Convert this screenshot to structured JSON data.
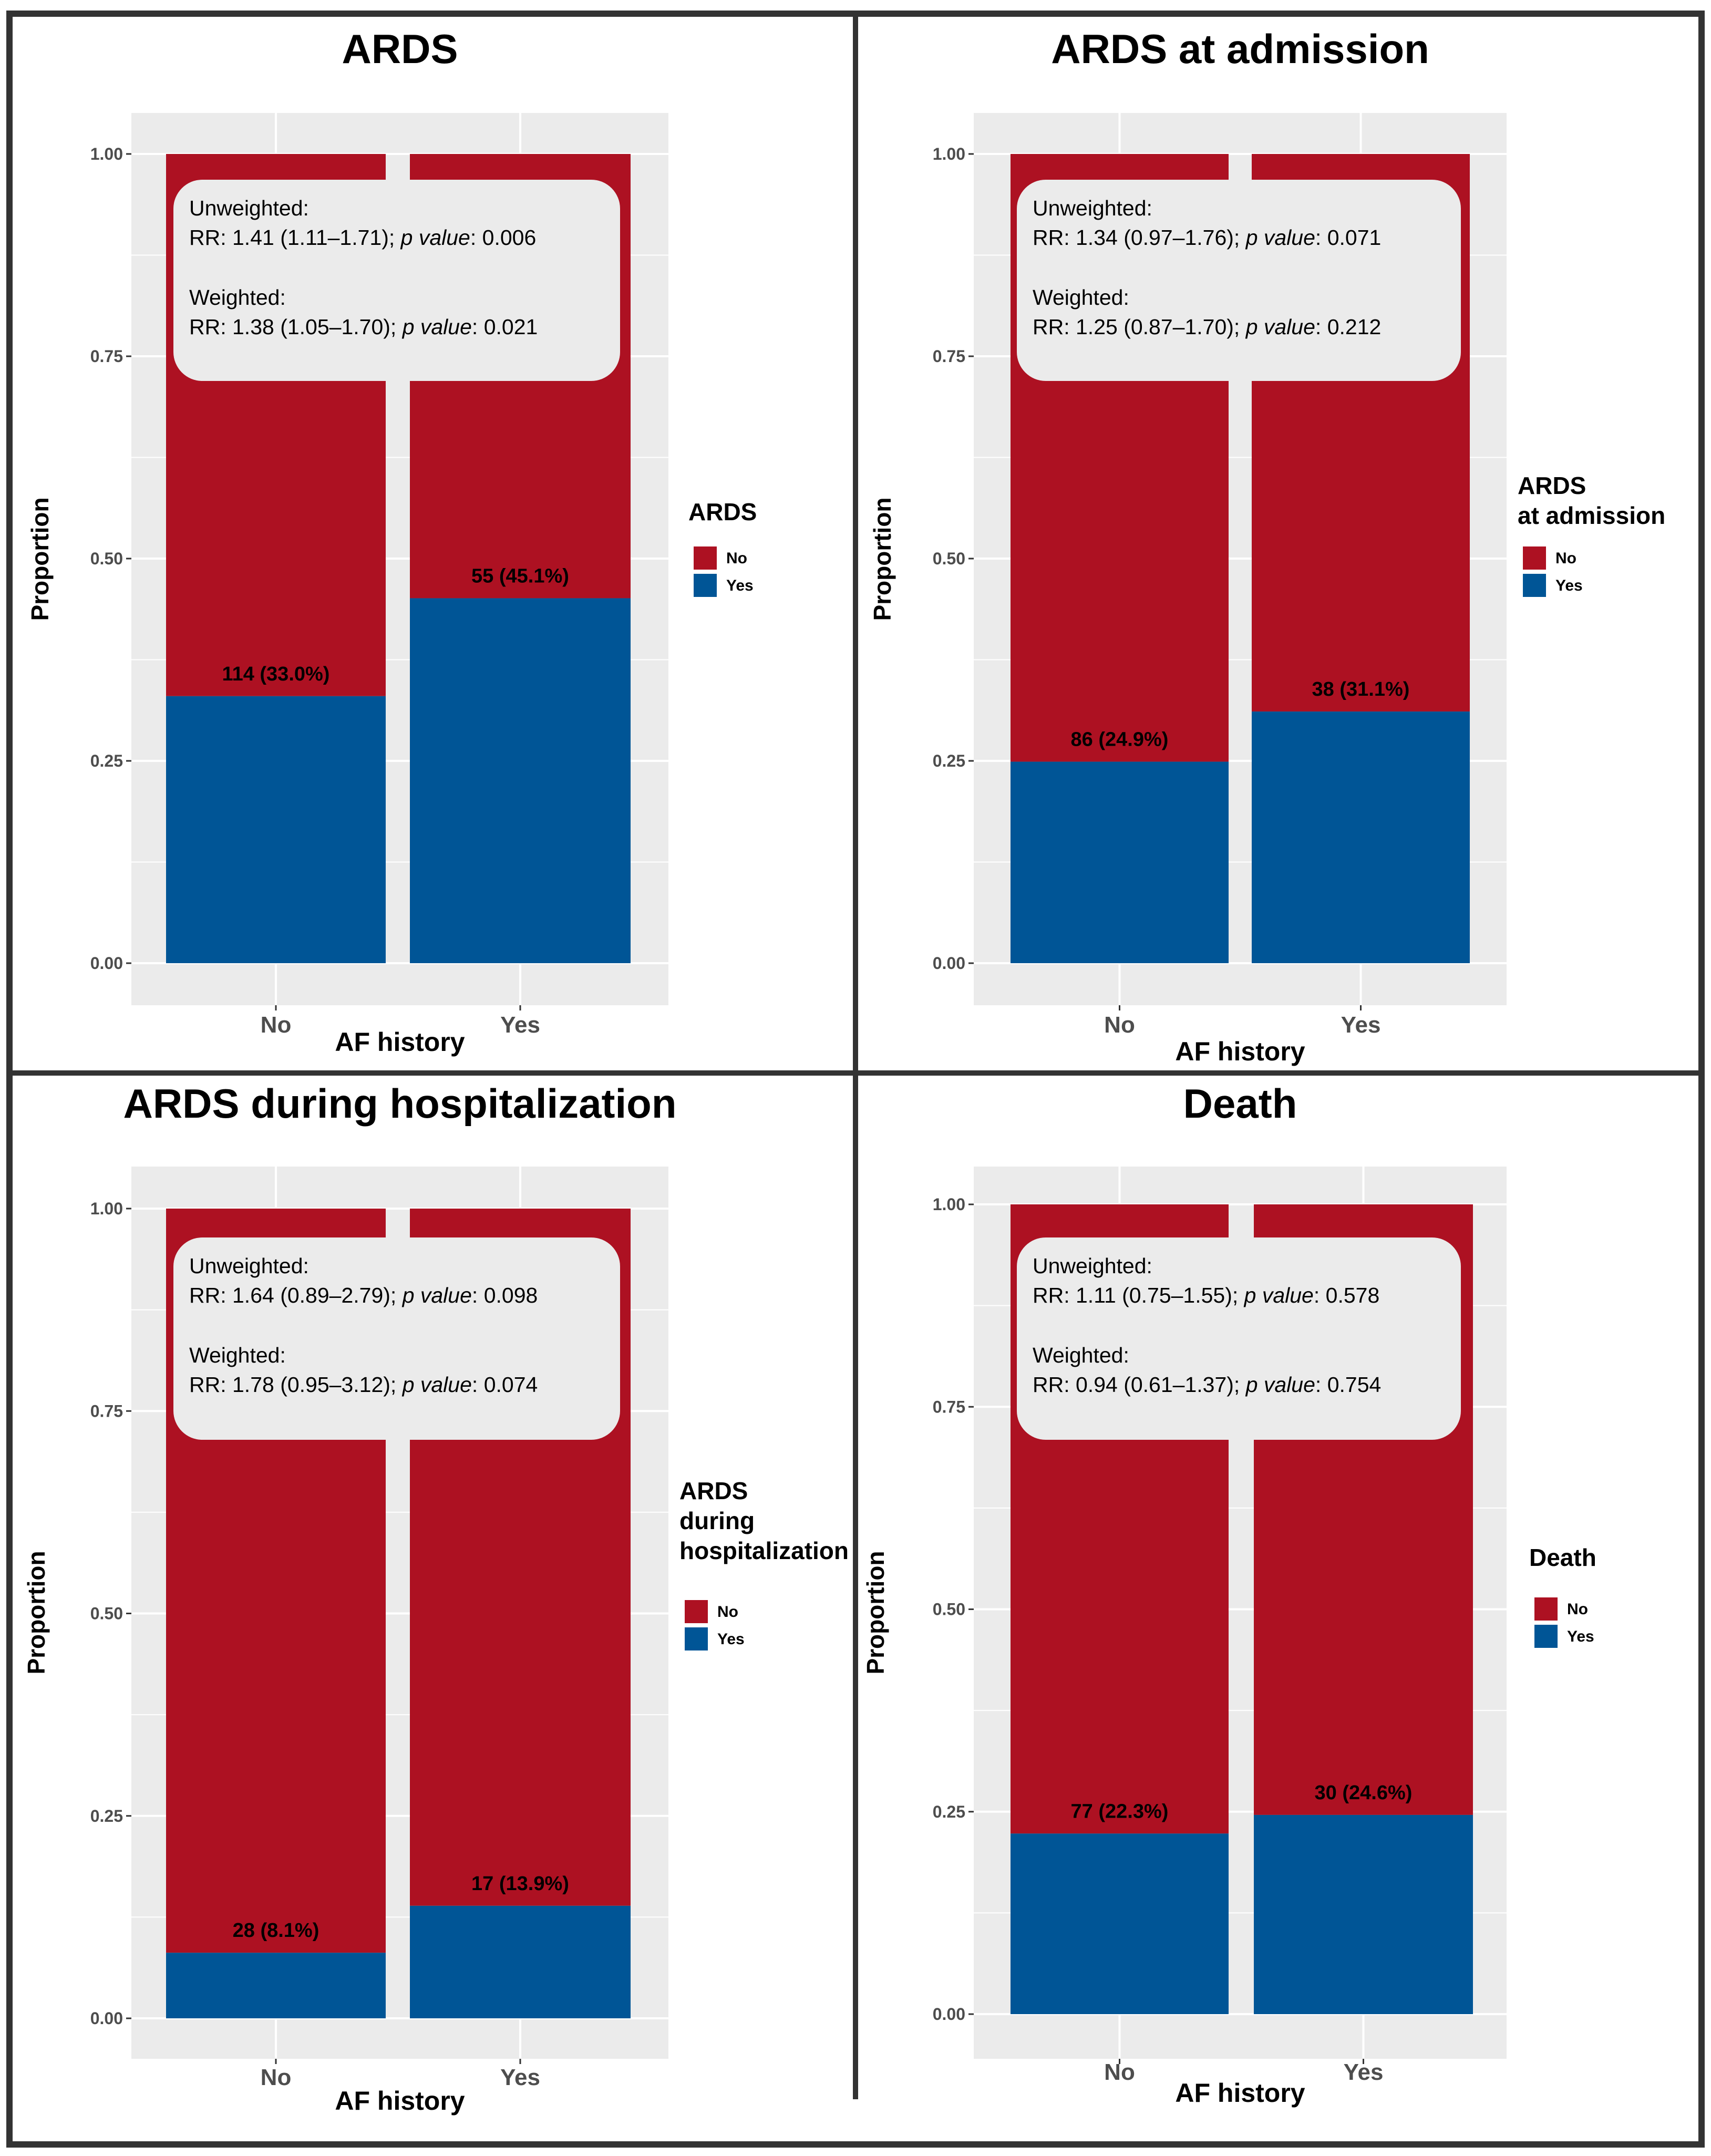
{
  "colors": {
    "yes": "#005596",
    "no": "#ad1122",
    "panel_bg": "#ebebeb",
    "grid": "#ffffff",
    "frame": "#333333"
  },
  "chart_data": [
    {
      "type": "bar",
      "stacked": true,
      "title": "ARDS",
      "xlabel": "AF history",
      "ylabel": "Proportion",
      "ylim": [
        0,
        1
      ],
      "yticks": [
        "0.00",
        "0.25",
        "0.50",
        "0.75",
        "1.00"
      ],
      "categories": [
        "No",
        "Yes"
      ],
      "series": [
        {
          "name": "Yes",
          "values": [
            0.33,
            0.451
          ]
        },
        {
          "name": "No",
          "values": [
            0.67,
            0.549
          ]
        }
      ],
      "bar_labels": [
        "114 (33.0%)",
        "55 (45.1%)"
      ],
      "legend": {
        "title": [
          "ARDS"
        ],
        "items": [
          "No",
          "Yes"
        ]
      },
      "annotation": {
        "unweighted_label": "Unweighted:",
        "unweighted_rr": "RR: 1.41 (1.11–1.71); ",
        "unweighted_p": "0.006",
        "weighted_label": "Weighted:",
        "weighted_rr": "RR: 1.38 (1.05–1.70); ",
        "weighted_p": "0.021",
        "p_label": "p value",
        "p_colon": ": "
      }
    },
    {
      "type": "bar",
      "stacked": true,
      "title": "ARDS at admission",
      "xlabel": "AF history",
      "ylabel": "Proportion",
      "ylim": [
        0,
        1
      ],
      "yticks": [
        "0.00",
        "0.25",
        "0.50",
        "0.75",
        "1.00"
      ],
      "categories": [
        "No",
        "Yes"
      ],
      "series": [
        {
          "name": "Yes",
          "values": [
            0.249,
            0.311
          ]
        },
        {
          "name": "No",
          "values": [
            0.751,
            0.689
          ]
        }
      ],
      "bar_labels": [
        "86 (24.9%)",
        "38 (31.1%)"
      ],
      "legend": {
        "title": [
          "ARDS",
          "at admission"
        ],
        "items": [
          "No",
          "Yes"
        ]
      },
      "annotation": {
        "unweighted_label": "Unweighted:",
        "unweighted_rr": "RR: 1.34 (0.97–1.76); ",
        "unweighted_p": "0.071",
        "weighted_label": "Weighted:",
        "weighted_rr": "RR: 1.25 (0.87–1.70); ",
        "weighted_p": "0.212",
        "p_label": "p value",
        "p_colon": ": "
      }
    },
    {
      "type": "bar",
      "stacked": true,
      "title": "ARDS during hospitalization",
      "xlabel": "AF history",
      "ylabel": "Proportion",
      "ylim": [
        0,
        1
      ],
      "yticks": [
        "0.00",
        "0.25",
        "0.50",
        "0.75",
        "1.00"
      ],
      "categories": [
        "No",
        "Yes"
      ],
      "series": [
        {
          "name": "Yes",
          "values": [
            0.081,
            0.139
          ]
        },
        {
          "name": "No",
          "values": [
            0.919,
            0.861
          ]
        }
      ],
      "bar_labels": [
        "28 (8.1%)",
        "17 (13.9%)"
      ],
      "legend": {
        "title": [
          "ARDS",
          "during",
          "hospitalization"
        ],
        "items": [
          "No",
          "Yes"
        ]
      },
      "annotation": {
        "unweighted_label": "Unweighted:",
        "unweighted_rr": "RR: 1.64 (0.89–2.79); ",
        "unweighted_p": "0.098",
        "weighted_label": "Weighted:",
        "weighted_rr": "RR: 1.78 (0.95–3.12); ",
        "weighted_p": "0.074",
        "p_label": "p value",
        "p_colon": ": "
      }
    },
    {
      "type": "bar",
      "stacked": true,
      "title": "Death",
      "xlabel": "AF history",
      "ylabel": "Proportion",
      "ylim": [
        0,
        1
      ],
      "yticks": [
        "0.00",
        "0.25",
        "0.50",
        "0.75",
        "1.00"
      ],
      "categories": [
        "No",
        "Yes"
      ],
      "series": [
        {
          "name": "Yes",
          "values": [
            0.223,
            0.246
          ]
        },
        {
          "name": "No",
          "values": [
            0.777,
            0.754
          ]
        }
      ],
      "bar_labels": [
        "77 (22.3%)",
        "30 (24.6%)"
      ],
      "legend": {
        "title": [
          "Death"
        ],
        "items": [
          "No",
          "Yes"
        ]
      },
      "annotation": {
        "unweighted_label": "Unweighted:",
        "unweighted_rr": "RR: 1.11 (0.75–1.55); ",
        "unweighted_p": "0.578",
        "weighted_label": "Weighted:",
        "weighted_rr": "RR: 0.94 (0.61–1.37); ",
        "weighted_p": "0.754",
        "p_label": "p value",
        "p_colon": ": "
      }
    }
  ]
}
